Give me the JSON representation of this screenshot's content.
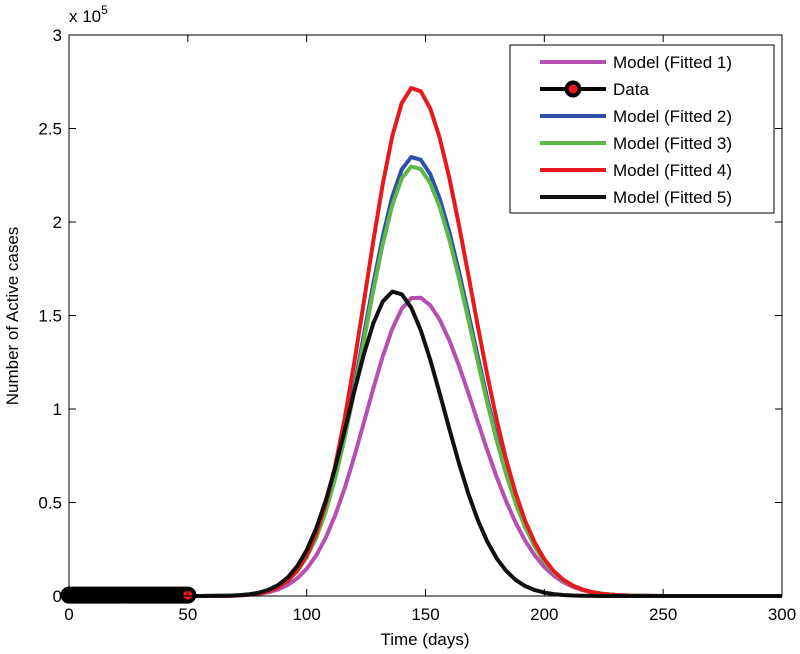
{
  "chart_data": {
    "type": "line",
    "xlabel": "Time (days)",
    "ylabel": "Number of Active cases",
    "y_multiplier": "x 10",
    "y_multiplier_exponent": "5",
    "xlim": [
      0,
      300
    ],
    "ylim": [
      0,
      3
    ],
    "x_ticks": [
      "0",
      "50",
      "100",
      "150",
      "200",
      "250",
      "300"
    ],
    "y_ticks": [
      "0",
      "0.5",
      "1",
      "1.5",
      "2",
      "2.5",
      "3"
    ],
    "grid": false,
    "legend_position": "top-right",
    "series": [
      {
        "name": "Model (Fitted 1)",
        "color": "#b64fb4",
        "peak_x": 146,
        "peak_y": 1.6,
        "sigma_left": 21,
        "sigma_right": 25
      },
      {
        "name": "Data",
        "color": "#e8191c",
        "marker_edge": "#000000",
        "x_start": 0,
        "x_end": 50,
        "step": 1,
        "y": 0.005
      },
      {
        "name": "Model (Fitted 2)",
        "color": "#2d4fa8",
        "peak_x": 145,
        "peak_y": 2.35,
        "sigma_left": 20.5,
        "sigma_right": 24.5
      },
      {
        "name": "Model (Fitted 3)",
        "color": "#5db848",
        "peak_x": 145,
        "peak_y": 2.3,
        "sigma_left": 20.5,
        "sigma_right": 24.5
      },
      {
        "name": "Model (Fitted 4)",
        "color": "#e8191c",
        "peak_x": 145,
        "peak_y": 2.72,
        "sigma_left": 20,
        "sigma_right": 24
      },
      {
        "name": "Model (Fitted 5)",
        "color": "#111111",
        "peak_x": 137,
        "peak_y": 1.63,
        "sigma_left": 19,
        "sigma_right": 21
      }
    ]
  }
}
